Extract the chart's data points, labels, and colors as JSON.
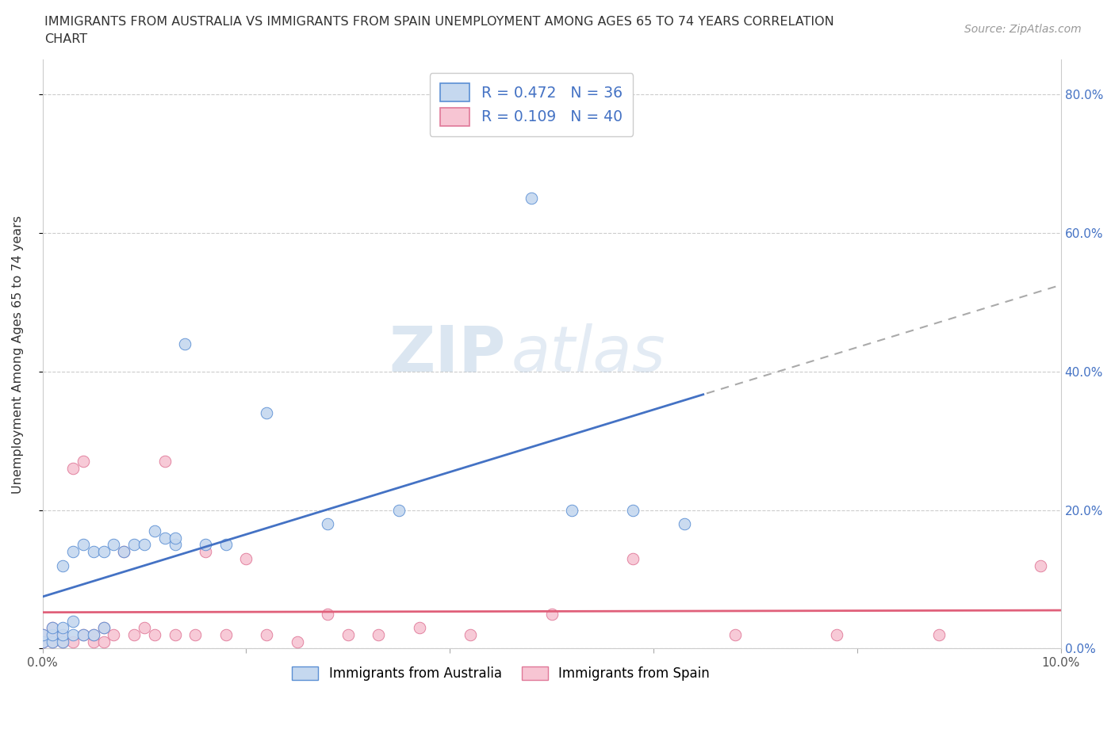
{
  "title_line1": "IMMIGRANTS FROM AUSTRALIA VS IMMIGRANTS FROM SPAIN UNEMPLOYMENT AMONG AGES 65 TO 74 YEARS CORRELATION",
  "title_line2": "CHART",
  "source_text": "Source: ZipAtlas.com",
  "ylabel": "Unemployment Among Ages 65 to 74 years",
  "watermark_zip": "ZIP",
  "watermark_atlas": "atlas",
  "legend_r_australia": "R = 0.472",
  "legend_n_australia": "N = 36",
  "legend_r_spain": "R = 0.109",
  "legend_n_spain": "N = 40",
  "australia_color": "#c5d8ef",
  "australia_edge_color": "#5b8fd4",
  "australia_line_color": "#4472c4",
  "spain_color": "#f7c5d3",
  "spain_edge_color": "#e07898",
  "spain_line_color": "#e0607a",
  "xlim": [
    0.0,
    0.1
  ],
  "ylim": [
    0.0,
    0.85
  ],
  "yticks": [
    0.0,
    0.2,
    0.4,
    0.6,
    0.8
  ],
  "ytick_labels_right": [
    "0.0%",
    "20.0%",
    "40.0%",
    "60.0%",
    "80.0%"
  ],
  "xticks": [
    0.0,
    0.02,
    0.04,
    0.06,
    0.08,
    0.1
  ],
  "xtick_labels": [
    "0.0%",
    "",
    "",
    "",
    "",
    "10.0%"
  ],
  "australia_x": [
    0.0,
    0.0,
    0.001,
    0.001,
    0.001,
    0.002,
    0.002,
    0.002,
    0.002,
    0.003,
    0.003,
    0.003,
    0.004,
    0.004,
    0.005,
    0.005,
    0.006,
    0.006,
    0.007,
    0.008,
    0.009,
    0.01,
    0.011,
    0.012,
    0.013,
    0.013,
    0.014,
    0.016,
    0.018,
    0.022,
    0.028,
    0.035,
    0.048,
    0.052,
    0.058,
    0.063
  ],
  "australia_y": [
    0.01,
    0.02,
    0.01,
    0.02,
    0.03,
    0.01,
    0.02,
    0.03,
    0.12,
    0.02,
    0.04,
    0.14,
    0.02,
    0.15,
    0.02,
    0.14,
    0.03,
    0.14,
    0.15,
    0.14,
    0.15,
    0.15,
    0.17,
    0.16,
    0.15,
    0.16,
    0.44,
    0.15,
    0.15,
    0.34,
    0.18,
    0.2,
    0.65,
    0.2,
    0.2,
    0.18
  ],
  "spain_x": [
    0.0,
    0.0,
    0.0,
    0.001,
    0.001,
    0.001,
    0.002,
    0.002,
    0.003,
    0.003,
    0.004,
    0.004,
    0.005,
    0.005,
    0.006,
    0.006,
    0.007,
    0.008,
    0.009,
    0.01,
    0.011,
    0.012,
    0.013,
    0.015,
    0.016,
    0.018,
    0.02,
    0.022,
    0.025,
    0.028,
    0.03,
    0.033,
    0.037,
    0.042,
    0.05,
    0.058,
    0.068,
    0.078,
    0.088,
    0.098
  ],
  "spain_y": [
    0.01,
    0.01,
    0.02,
    0.01,
    0.02,
    0.03,
    0.01,
    0.02,
    0.01,
    0.26,
    0.02,
    0.27,
    0.01,
    0.02,
    0.01,
    0.03,
    0.02,
    0.14,
    0.02,
    0.03,
    0.02,
    0.27,
    0.02,
    0.02,
    0.14,
    0.02,
    0.13,
    0.02,
    0.01,
    0.05,
    0.02,
    0.02,
    0.03,
    0.02,
    0.05,
    0.13,
    0.02,
    0.02,
    0.02,
    0.12
  ]
}
